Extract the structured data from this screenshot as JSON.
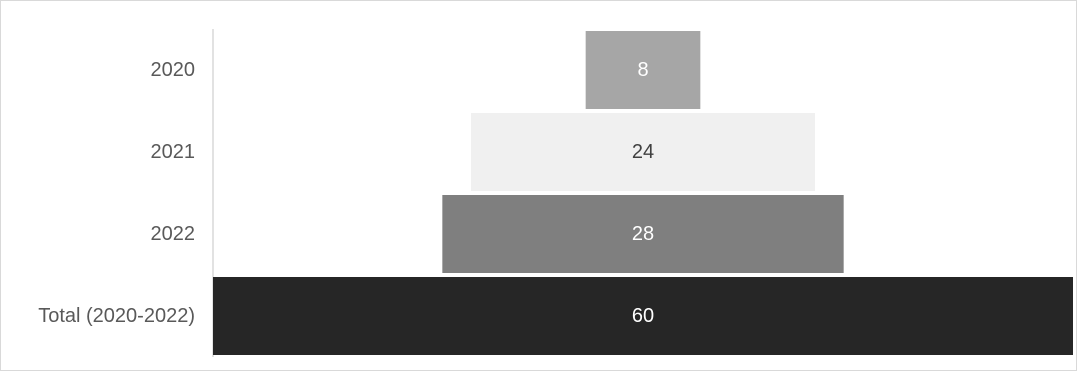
{
  "chart_data": {
    "type": "bar",
    "orientation": "horizontal",
    "layout": "funnel",
    "categories": [
      "2020",
      "2021",
      "2022",
      "Total (2020-2022)"
    ],
    "values": [
      8,
      24,
      28,
      60
    ],
    "colors": [
      "#a6a6a6",
      "#f0f0f0",
      "#7f7f7f",
      "#262626"
    ],
    "label_colors": [
      "#ffffff",
      "#404040",
      "#ffffff",
      "#ffffff"
    ],
    "data_labels": [
      "8",
      "24",
      "28",
      "60"
    ],
    "axis_color": "#d9d9d9",
    "category_label_color": "#595959",
    "grid": false,
    "legend": "none"
  }
}
